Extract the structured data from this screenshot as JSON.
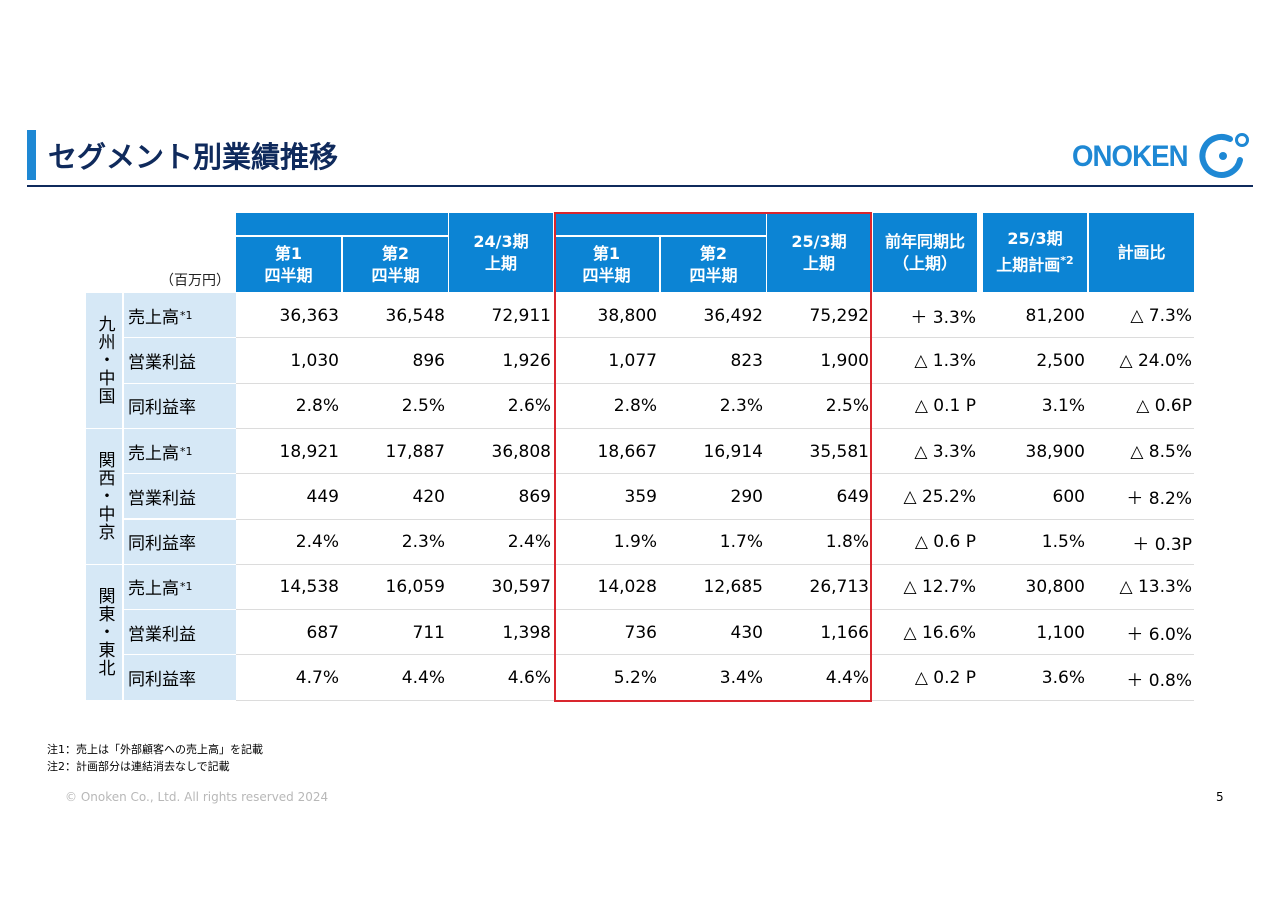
{
  "title": "セグメント別業績推移",
  "logo_text": "ONOKEN",
  "unit": "（百万円）",
  "headers": {
    "q1": [
      "第1",
      "四半期"
    ],
    "q2": [
      "第2",
      "四半期"
    ],
    "h1_2403": [
      "24/3期",
      "上期"
    ],
    "h1_2503": [
      "25/3期",
      "上期"
    ],
    "yoy": [
      "前年同期比",
      "（上期）"
    ],
    "plan": [
      "25/3期",
      "上期計画",
      "*2"
    ],
    "plan_ratio": "計画比"
  },
  "segments": [
    {
      "name": "九州・中国",
      "rows": [
        {
          "label": "売上高",
          "sup": "*1",
          "values": [
            "36,363",
            "36,548",
            "72,911",
            "38,800",
            "36,492",
            "75,292",
            "＋ 3.3%",
            "81,200",
            "△ 7.3%"
          ]
        },
        {
          "label": "営業利益",
          "sup": "",
          "values": [
            "1,030",
            "896",
            "1,926",
            "1,077",
            "823",
            "1,900",
            "△ 1.3%",
            "2,500",
            "△ 24.0%"
          ]
        },
        {
          "label": "同利益率",
          "sup": "",
          "values": [
            "2.8%",
            "2.5%",
            "2.6%",
            "2.8%",
            "2.3%",
            "2.5%",
            "△ 0.1 P",
            "3.1%",
            "△ 0.6P"
          ]
        }
      ]
    },
    {
      "name": "関西・中京",
      "rows": [
        {
          "label": "売上高",
          "sup": "*1",
          "values": [
            "18,921",
            "17,887",
            "36,808",
            "18,667",
            "16,914",
            "35,581",
            "△ 3.3%",
            "38,900",
            "△ 8.5%"
          ]
        },
        {
          "label": "営業利益",
          "sup": "",
          "values": [
            "449",
            "420",
            "869",
            "359",
            "290",
            "649",
            "△ 25.2%",
            "600",
            "＋ 8.2%"
          ]
        },
        {
          "label": "同利益率",
          "sup": "",
          "values": [
            "2.4%",
            "2.3%",
            "2.4%",
            "1.9%",
            "1.7%",
            "1.8%",
            "△ 0.6 P",
            "1.5%",
            "＋ 0.3P"
          ]
        }
      ]
    },
    {
      "name": "関東・東北",
      "rows": [
        {
          "label": "売上高",
          "sup": "*1",
          "values": [
            "14,538",
            "16,059",
            "30,597",
            "14,028",
            "12,685",
            "26,713",
            "△ 12.7%",
            "30,800",
            "△ 13.3%"
          ]
        },
        {
          "label": "営業利益",
          "sup": "",
          "values": [
            "687",
            "711",
            "1,398",
            "736",
            "430",
            "1,166",
            "△ 16.6%",
            "1,100",
            "＋ 6.0%"
          ]
        },
        {
          "label": "同利益率",
          "sup": "",
          "values": [
            "4.7%",
            "4.4%",
            "4.6%",
            "5.2%",
            "3.4%",
            "4.4%",
            "△ 0.2 P",
            "3.6%",
            "＋ 0.8%"
          ]
        }
      ]
    }
  ],
  "notes": [
    "注1：売上は「外部顧客への売上高」を記載",
    "注2：計画部分は連結消去なしで記載"
  ],
  "copyright": "© Onoken Co., Ltd. All rights reserved 2024",
  "page_number": "5"
}
